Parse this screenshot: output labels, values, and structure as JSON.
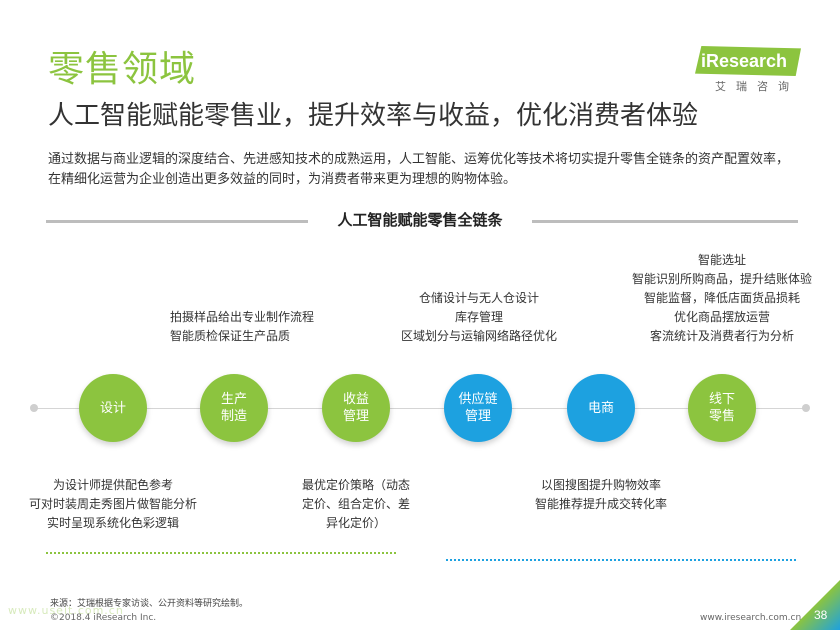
{
  "header": {
    "title": "零售领域",
    "subtitle": "人工智能赋能零售业，提升效率与收益，优化消费者体验",
    "intro": "通过数据与商业逻辑的深度结合、先进感知技术的成熟运用，人工智能、运筹优化等技术将切实提升零售全链条的资产配置效率，在精细化运营为企业创造出更多效益的同时，为消费者带来更为理想的购物体验。"
  },
  "logo": {
    "text": "iResearch",
    "cn": "艾瑞咨询",
    "color": "#8cc43f"
  },
  "section_title": "人工智能赋能零售全链条",
  "nodes": [
    {
      "label": "设计",
      "color": "#8cc43f"
    },
    {
      "label": "生产\n制造",
      "color": "#8cc43f"
    },
    {
      "label": "收益\n管理",
      "color": "#8cc43f"
    },
    {
      "label": "供应链\n管理",
      "color": "#1da1e0"
    },
    {
      "label": "电商",
      "color": "#1da1e0"
    },
    {
      "label": "线下\n零售",
      "color": "#8cc43f"
    }
  ],
  "descriptions": {
    "design": [
      "为设计师提供配色参考",
      "可对时装周走秀图片做智能分析",
      "实时呈现系统化色彩逻辑"
    ],
    "production": [
      "拍摄样品给出专业制作流程",
      "智能质检保证生产品质"
    ],
    "revenue": [
      "最优定价策略（动态",
      "定价、组合定价、差",
      "异化定价）"
    ],
    "supply_chain": [
      "仓储设计与无人仓设计",
      "库存管理",
      "区域划分与运输网络路径优化"
    ],
    "ecommerce": [
      "以图搜图提升购物效率",
      "智能推荐提升成交转化率"
    ],
    "offline": [
      "智能选址",
      "智能识别所购商品，提升结账体验",
      "智能监督，降低店面货品损耗",
      "优化商品摆放运营",
      "客流统计及消费者行为分析"
    ]
  },
  "footer": {
    "source": "来源：艾瑞根据专家访谈、公开资料等研究绘制。",
    "copyright": "©2018.4 iResearch Inc.",
    "website": "www.iresearch.com.cn",
    "watermark": "www.useit.com.cn",
    "page": "38"
  },
  "colors": {
    "green": "#8cc43f",
    "blue": "#1da1e0"
  }
}
